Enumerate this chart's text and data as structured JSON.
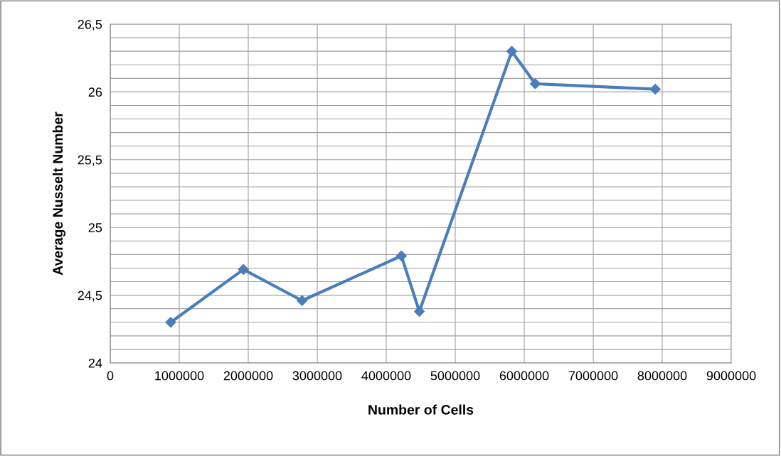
{
  "chart_data": {
    "type": "line",
    "xlabel": "Number of Cells",
    "ylabel": "Average Nusselt Number",
    "x": [
      876000,
      1930000,
      2780000,
      4220000,
      4480000,
      5820000,
      6160000,
      7900000
    ],
    "series": [
      {
        "color": "#4a7ebb",
        "values": [
          24.3,
          24.69,
          24.46,
          24.79,
          24.38,
          26.3,
          26.06,
          26.02
        ]
      }
    ],
    "xlim": [
      0,
      9000000
    ],
    "xticks": [
      0,
      1000000,
      2000000,
      3000000,
      4000000,
      5000000,
      6000000,
      7000000,
      8000000,
      9000000
    ],
    "ylim": [
      24,
      26.5
    ],
    "yticks": [
      24,
      {
        "value": 24.1,
        "label": null
      },
      {
        "value": 24.2,
        "label": null
      },
      {
        "value": 24.3,
        "label": null
      },
      {
        "value": 24.4,
        "label": null
      },
      {
        "value": 24.5,
        "label": "24,5"
      },
      {
        "value": 24.6,
        "label": null
      },
      {
        "value": 24.7,
        "label": null
      },
      {
        "value": 24.8,
        "label": null
      },
      {
        "value": 24.9,
        "label": null
      },
      25,
      {
        "value": 25.1,
        "label": null
      },
      {
        "value": 25.2,
        "label": null
      },
      {
        "value": 25.3,
        "label": null
      },
      {
        "value": 25.4,
        "label": null
      },
      {
        "value": 25.5,
        "label": "25,5"
      },
      {
        "value": 25.6,
        "label": null
      },
      {
        "value": 25.7,
        "label": null
      },
      {
        "value": 25.8,
        "label": null
      },
      {
        "value": 25.9,
        "label": null
      },
      26,
      {
        "value": 26.1,
        "label": null
      },
      {
        "value": 26.2,
        "label": null
      },
      {
        "value": 26.3,
        "label": null
      },
      {
        "value": 26.4,
        "label": null
      },
      {
        "value": 26.5,
        "label": "26,5"
      }
    ],
    "grid": true,
    "marker": "diamond",
    "line_style": "solid",
    "legend": false
  }
}
